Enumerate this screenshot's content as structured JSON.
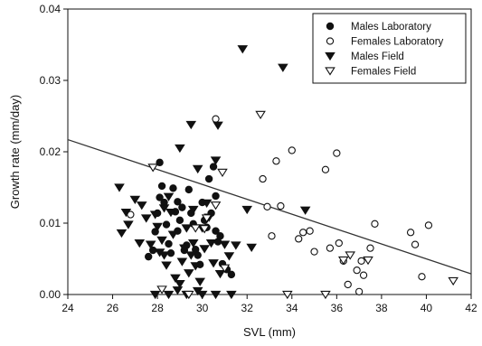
{
  "chart_data": {
    "type": "scatter",
    "title": "",
    "xlabel": "SVL (mm)",
    "ylabel": "Growth rate (mm/day)",
    "xlim": [
      24,
      42
    ],
    "ylim": [
      0,
      0.04
    ],
    "xticks": [
      "24",
      "26",
      "28",
      "30",
      "32",
      "34",
      "36",
      "38",
      "40",
      "42"
    ],
    "yticks": [
      "0.00",
      "0.01",
      "0.02",
      "0.03",
      "0.04"
    ],
    "grid": false,
    "legend_position": "top-right",
    "colors": {
      "marker": "#111111",
      "line": "#333333"
    },
    "regression_line": {
      "x": [
        24,
        42
      ],
      "y": [
        0.0217,
        0.0029
      ]
    },
    "series": [
      {
        "name": "Males Laboratory",
        "marker": "filled-circle",
        "points": [
          [
            27.6,
            0.0053
          ],
          [
            27.8,
            0.0062
          ],
          [
            27.9,
            0.0088
          ],
          [
            28.0,
            0.0114
          ],
          [
            28.1,
            0.0136
          ],
          [
            28.2,
            0.0152
          ],
          [
            28.3,
            0.0129
          ],
          [
            28.4,
            0.0098
          ],
          [
            28.5,
            0.0071
          ],
          [
            28.6,
            0.0058
          ],
          [
            28.7,
            0.0149
          ],
          [
            28.8,
            0.0116
          ],
          [
            28.9,
            0.0089
          ],
          [
            28.9,
            0.013
          ],
          [
            29.0,
            0.0104
          ],
          [
            29.1,
            0.0122
          ],
          [
            29.2,
            0.0062
          ],
          [
            29.3,
            0.0069
          ],
          [
            29.4,
            0.0147
          ],
          [
            29.5,
            0.0114
          ],
          [
            29.6,
            0.0099
          ],
          [
            29.7,
            0.0063
          ],
          [
            29.8,
            0.0055
          ],
          [
            29.9,
            0.0042
          ],
          [
            30.0,
            0.0129
          ],
          [
            30.1,
            0.0104
          ],
          [
            30.2,
            0.0094
          ],
          [
            30.3,
            0.0162
          ],
          [
            30.4,
            0.0114
          ],
          [
            30.5,
            0.0179
          ],
          [
            30.6,
            0.0138
          ],
          [
            30.6,
            0.0089
          ],
          [
            30.7,
            0.0074
          ],
          [
            30.8,
            0.0082
          ],
          [
            30.9,
            0.0043
          ],
          [
            31.1,
            0.0035
          ],
          [
            31.3,
            0.0028
          ],
          [
            28.1,
            0.0185
          ]
        ]
      },
      {
        "name": "Females Laboratory",
        "marker": "open-circle",
        "points": [
          [
            26.8,
            0.0112
          ],
          [
            30.6,
            0.0246
          ],
          [
            32.7,
            0.0162
          ],
          [
            32.9,
            0.0123
          ],
          [
            33.1,
            0.0082
          ],
          [
            33.3,
            0.0187
          ],
          [
            33.5,
            0.0124
          ],
          [
            34.0,
            0.0202
          ],
          [
            34.3,
            0.0078
          ],
          [
            34.5,
            0.0087
          ],
          [
            34.8,
            0.0089
          ],
          [
            35.0,
            0.006
          ],
          [
            35.5,
            0.0175
          ],
          [
            35.7,
            0.0065
          ],
          [
            36.0,
            0.0198
          ],
          [
            36.1,
            0.0072
          ],
          [
            36.3,
            0.0047
          ],
          [
            36.5,
            0.0014
          ],
          [
            37.0,
            0.0004
          ],
          [
            37.1,
            0.0047
          ],
          [
            37.2,
            0.0027
          ],
          [
            37.5,
            0.0065
          ],
          [
            37.7,
            0.0099
          ],
          [
            39.3,
            0.0087
          ],
          [
            39.5,
            0.007
          ],
          [
            39.8,
            0.0025
          ],
          [
            40.1,
            0.0097
          ],
          [
            36.9,
            0.0034
          ]
        ]
      },
      {
        "name": "Males Field",
        "marker": "filled-triangle-down",
        "points": [
          [
            26.3,
            0.015
          ],
          [
            26.4,
            0.0086
          ],
          [
            26.6,
            0.0115
          ],
          [
            26.7,
            0.0098
          ],
          [
            27.0,
            0.0133
          ],
          [
            27.2,
            0.0072
          ],
          [
            27.3,
            0.0125
          ],
          [
            27.5,
            0.0107
          ],
          [
            27.7,
            0.007
          ],
          [
            27.9,
            0.0112
          ],
          [
            28.0,
            0.0095
          ],
          [
            28.1,
            0.0059
          ],
          [
            28.2,
            0.0076
          ],
          [
            28.3,
            0.0055
          ],
          [
            28.4,
            0.0041
          ],
          [
            28.5,
            0.0137
          ],
          [
            28.6,
            0.0115
          ],
          [
            28.7,
            0.0084
          ],
          [
            28.8,
            0.0023
          ],
          [
            28.9,
            0.0006
          ],
          [
            29.0,
            0.0015
          ],
          [
            29.1,
            0.0046
          ],
          [
            29.2,
            0.0065
          ],
          [
            29.3,
            0.0093
          ],
          [
            29.4,
            0.003
          ],
          [
            29.5,
            0.0055
          ],
          [
            29.6,
            0.0072
          ],
          [
            29.7,
            0.004
          ],
          [
            29.8,
            0.0005
          ],
          [
            29.9,
            0.0018
          ],
          [
            30.0,
            0.0093
          ],
          [
            30.1,
            0.0064
          ],
          [
            30.2,
            0.0128
          ],
          [
            30.3,
            0.0108
          ],
          [
            30.4,
            0.0072
          ],
          [
            30.5,
            0.0044
          ],
          [
            30.6,
            0.0188
          ],
          [
            30.7,
            0.0237
          ],
          [
            30.8,
            0.0029
          ],
          [
            31.0,
            0.007
          ],
          [
            31.2,
            0.0054
          ],
          [
            31.5,
            0.0069
          ],
          [
            31.8,
            0.0344
          ],
          [
            32.0,
            0.0119
          ],
          [
            32.2,
            0.0066
          ],
          [
            33.6,
            0.0318
          ],
          [
            34.6,
            0.0118
          ],
          [
            29.0,
            0.0205
          ],
          [
            29.8,
            0.0176
          ],
          [
            29.5,
            0.0238
          ],
          [
            27.9,
            0.0
          ],
          [
            28.5,
            0.0
          ],
          [
            29.3,
            0.0
          ],
          [
            30.0,
            0.0
          ],
          [
            30.6,
            0.0
          ],
          [
            31.3,
            0.0
          ],
          [
            29.6,
            0.0119
          ],
          [
            28.3,
            0.0121
          ]
        ]
      },
      {
        "name": "Females Field",
        "marker": "open-triangle-down",
        "points": [
          [
            27.8,
            0.0178
          ],
          [
            29.7,
            0.0093
          ],
          [
            30.2,
            0.0107
          ],
          [
            30.6,
            0.0125
          ],
          [
            30.9,
            0.0171
          ],
          [
            31.0,
            0.0037
          ],
          [
            32.6,
            0.0252
          ],
          [
            33.8,
            0.0
          ],
          [
            35.5,
            0.0
          ],
          [
            36.3,
            0.0048
          ],
          [
            36.6,
            0.0055
          ],
          [
            37.4,
            0.0048
          ],
          [
            41.2,
            0.0019
          ],
          [
            28.2,
            0.0007
          ],
          [
            29.4,
            0.0
          ],
          [
            30.1,
            0.0092
          ]
        ]
      }
    ]
  }
}
